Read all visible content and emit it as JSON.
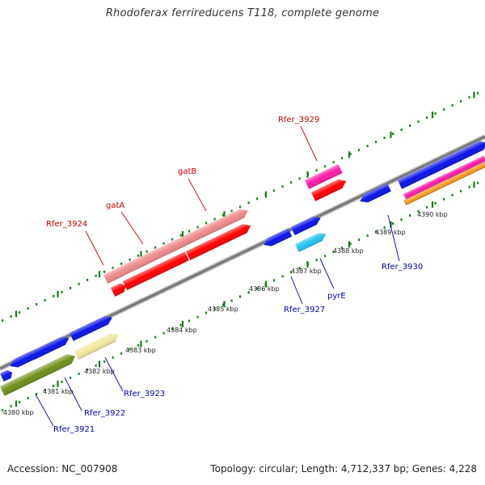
{
  "title": "Rhodoferax ferrireducens T118, complete genome",
  "footer": {
    "accession": "Accession: NC_007908",
    "topology": "Topology: circular; Length: 4,712,337 bp; Genes: 4,228"
  },
  "colors": {
    "upper_label": "#cc0000",
    "lower_label": "#0000bb",
    "backbone": "#808080",
    "ruler_dot": "#1a8a1a",
    "ruler_tick": "#1a7a1a"
  },
  "ruler_labels": [
    "4380 kbp",
    "4381 kbp",
    "4382 kbp",
    "4383 kbp",
    "4384 kbp",
    "4385 kbp",
    "4386 kbp",
    "4387 kbp",
    "4388 kbp",
    "4389 kbp",
    "4390 kbp"
  ],
  "gene_labels_upper": [
    "Rfer_3924",
    "gatA",
    "gatB",
    "Rfer_3929"
  ],
  "gene_labels_lower": [
    "Rfer_3921",
    "Rfer_3922",
    "Rfer_3923",
    "Rfer_3927",
    "pyrE",
    "Rfer_3930"
  ]
}
